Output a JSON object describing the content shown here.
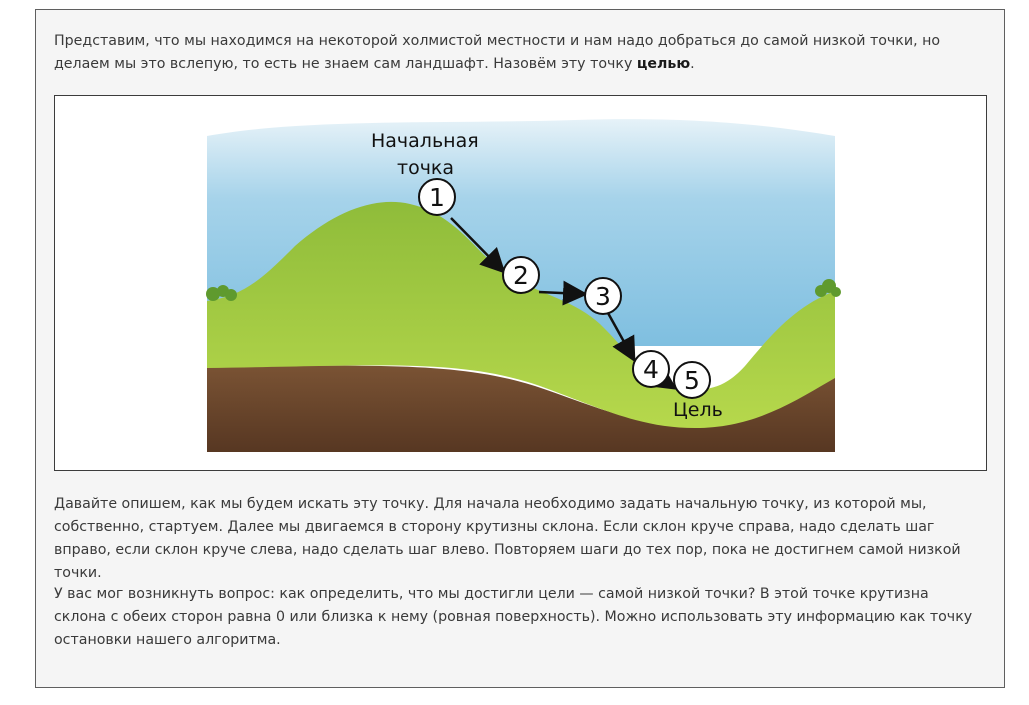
{
  "article": {
    "p1_text": "Представим, что мы находимся на некоторой холмистой местности и нам надо добраться до самой низкой точки, но делаем мы это вслепую, то есть не знаем сам ландшафт. Назовём эту точку ",
    "p1_bold": "целью",
    "p1_end": ".",
    "p2": "Давайте опишем, как мы будем искать эту точку. Для начала необходимо задать начальную точку, из которой мы, собственно, стартуем. Далее мы двигаемся в сторону крутизны склона. Если склон круче справа, надо сделать шаг вправо, если склон круче слева, надо сделать шаг влево. Повторяем шаги до тех пор, пока не достигнем самой низкой точки.",
    "p3": "У вас мог возникнуть вопрос: как определить, что мы достигли цели — самой низкой точки? В этой точке крутизна склона с обеих сторон равна 0 или близка к нему (ровная поверхность). Можно использовать эту информацию как точку остановки нашего алгоритма."
  },
  "illustration": {
    "start_label_line1": "Начальная",
    "start_label_line2": "точка",
    "goal_label": "Цель",
    "steps": [
      "1",
      "2",
      "3",
      "4",
      "5"
    ],
    "colors": {
      "sky": "#8ec7e4",
      "grass": "#a9cf45",
      "soil": "#6e4a2d"
    }
  }
}
